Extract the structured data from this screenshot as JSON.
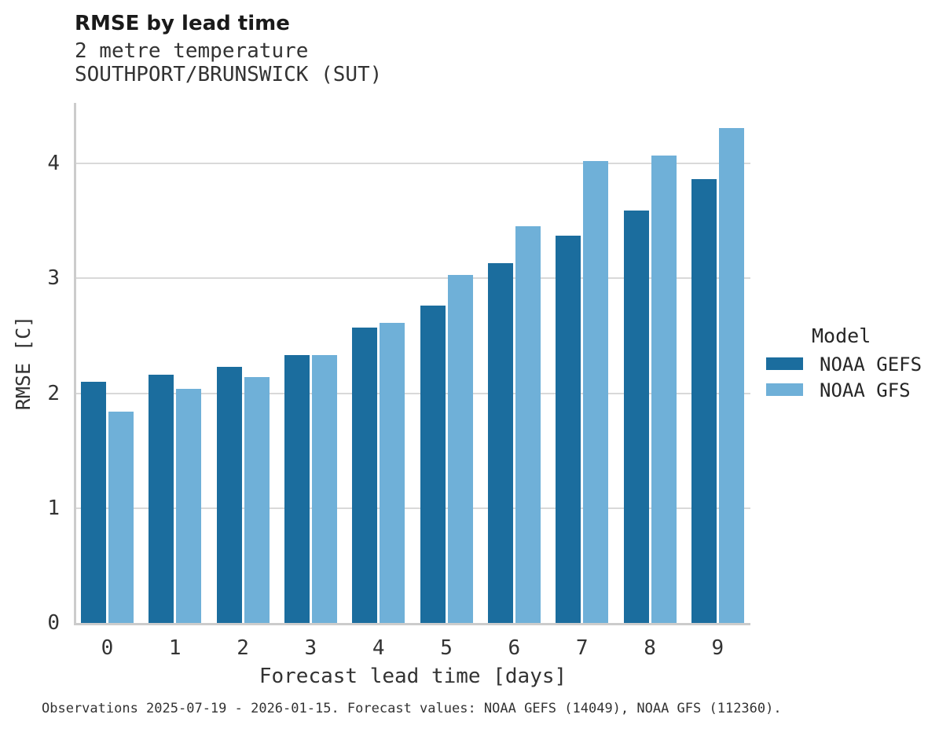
{
  "chart_data": {
    "type": "bar",
    "title": "RMSE by lead time",
    "subtitle1": "2 metre temperature",
    "subtitle2": "SOUTHPORT/BRUNSWICK (SUT)",
    "categories": [
      "0",
      "1",
      "2",
      "3",
      "4",
      "5",
      "6",
      "7",
      "8",
      "9"
    ],
    "series": [
      {
        "name": "NOAA GEFS",
        "color": "#1b6d9e",
        "values": [
          2.1,
          2.16,
          2.23,
          2.33,
          2.57,
          2.76,
          3.13,
          3.37,
          3.59,
          3.86
        ]
      },
      {
        "name": "NOAA GFS",
        "color": "#6fb0d8",
        "values": [
          1.84,
          2.04,
          2.14,
          2.33,
          2.61,
          3.03,
          3.45,
          4.02,
          4.07,
          4.31
        ]
      }
    ],
    "xlabel": "Forecast lead time [days]",
    "ylabel": "RMSE [C]",
    "ylim": [
      0,
      4.5
    ],
    "yticks": [
      0,
      1,
      2,
      3,
      4
    ],
    "grid": "horizontal",
    "legend_title": "Model",
    "legend_position": "right",
    "gridline_color": "#d9d9d9",
    "axis_line_color": "#cccccc"
  },
  "caption": "Observations 2025-07-19 - 2026-01-15. Forecast values: NOAA GEFS (14049), NOAA GFS (112360)."
}
